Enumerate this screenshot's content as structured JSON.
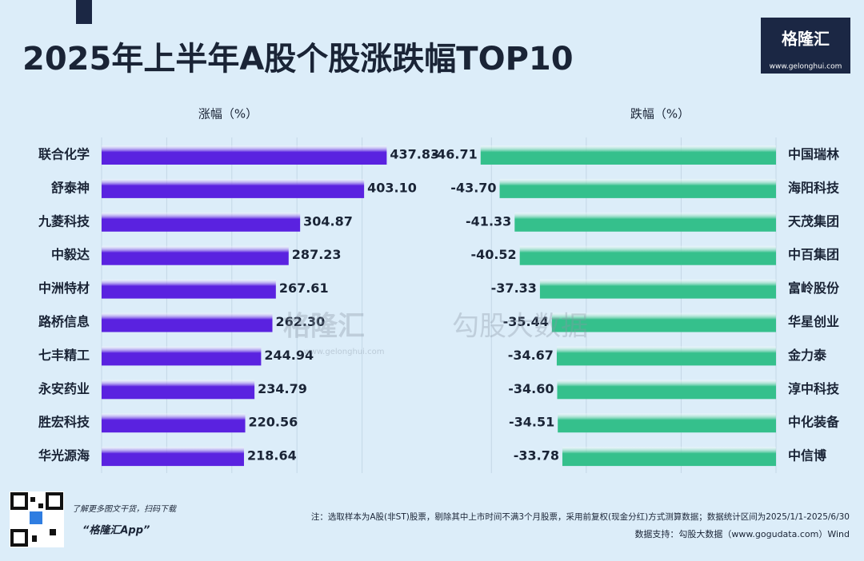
{
  "header": {
    "title": "2025年上半年A股个股涨跌幅TOP10",
    "logo": "格隆汇",
    "logo_url": "www.gelonghui.com"
  },
  "watermark": {
    "brand": "格隆汇",
    "brand_url": "www.gelonghui.com",
    "source": "勾股大数据"
  },
  "chart_data": [
    {
      "type": "bar",
      "orientation": "horizontal",
      "x_label": "涨幅（%）",
      "categories": [
        "联合化学",
        "舒泰神",
        "九菱科技",
        "中毅达",
        "中洲特材",
        "路桥信息",
        "七丰精工",
        "永安药业",
        "胜宏科技",
        "华光源海"
      ],
      "values": [
        437.83,
        403.1,
        304.87,
        287.23,
        267.61,
        262.3,
        244.94,
        234.79,
        220.56,
        218.64
      ],
      "value_labels": [
        "437.83",
        "403.10",
        "304.87",
        "287.23",
        "267.61",
        "262.30",
        "244.94",
        "234.79",
        "220.56",
        "218.64"
      ],
      "color": "#5a22e0",
      "xlim": [
        0,
        500
      ],
      "xticks": [
        0,
        100,
        200,
        300,
        400
      ],
      "grid": true
    },
    {
      "type": "bar",
      "orientation": "horizontal",
      "x_label": "跌幅（%）",
      "categories": [
        "中国瑞林",
        "海阳科技",
        "天茂集团",
        "中百集团",
        "富岭股份",
        "华星创业",
        "金力泰",
        "淳中科技",
        "中化装备",
        "中信博"
      ],
      "values": [
        -46.71,
        -43.7,
        -41.33,
        -40.52,
        -37.33,
        -35.44,
        -34.67,
        -34.6,
        -34.51,
        -33.78
      ],
      "value_labels": [
        "-46.71",
        "-43.70",
        "-41.33",
        "-40.52",
        "-37.33",
        "-35.44",
        "-34.67",
        "-34.60",
        "-34.51",
        "-33.78"
      ],
      "color": "#35c08c",
      "xlim": [
        -52.5,
        0
      ],
      "xticks": [
        -45,
        -30,
        -15,
        0
      ],
      "grid": true
    }
  ],
  "footer": {
    "qr_caption": "了解更多图文干货，扫码下载",
    "app": "“格隆汇App”",
    "note": "注：选取样本为A股(非ST)股票，剔除其中上市时间不满3个月股票，采用前复权(现金分红)方式测算数据；数据统计区间为2025/1/1-2025/6/30",
    "source": "数据支持：勾股大数据（www.gogudata.com）Wind"
  }
}
